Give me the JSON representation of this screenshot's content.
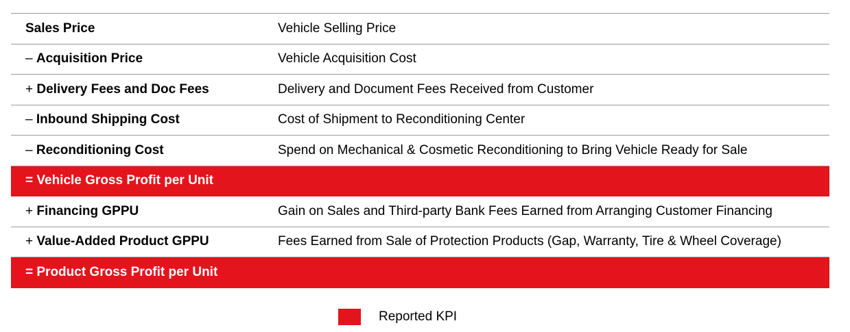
{
  "colors": {
    "kpi_red": "#e3141c",
    "rule_gray": "#9a9a9a"
  },
  "rows": [
    {
      "op": "",
      "name": "Sales Price",
      "desc": "Vehicle Selling Price",
      "kpi": false
    },
    {
      "op": "– ",
      "name": "Acquisition Price",
      "desc": "Vehicle Acquisition Cost",
      "kpi": false
    },
    {
      "op": "+ ",
      "name": "Delivery Fees and Doc Fees",
      "desc": "Delivery and Document Fees Received from Customer",
      "kpi": false
    },
    {
      "op": "– ",
      "name": "Inbound Shipping Cost",
      "desc": "Cost of Shipment to Reconditioning Center",
      "kpi": false
    },
    {
      "op": "– ",
      "name": "Reconditioning Cost",
      "desc": "Spend on Mechanical & Cosmetic Reconditioning to Bring Vehicle Ready for Sale",
      "kpi": false
    },
    {
      "op": "= ",
      "name": "Vehicle Gross Profit per Unit",
      "desc": "",
      "kpi": true
    },
    {
      "op": "+ ",
      "name": "Financing GPPU",
      "desc": "Gain on Sales and Third-party Bank Fees Earned from Arranging Customer Financing",
      "kpi": false
    },
    {
      "op": "+ ",
      "name": "Value-Added Product GPPU",
      "desc": "Fees Earned from Sale of Protection Products (Gap, Warranty, Tire & Wheel Coverage)",
      "kpi": false
    },
    {
      "op": "= ",
      "name": "Product Gross Profit per Unit",
      "desc": "",
      "kpi": true
    }
  ],
  "legend": {
    "label": "Reported KPI"
  }
}
